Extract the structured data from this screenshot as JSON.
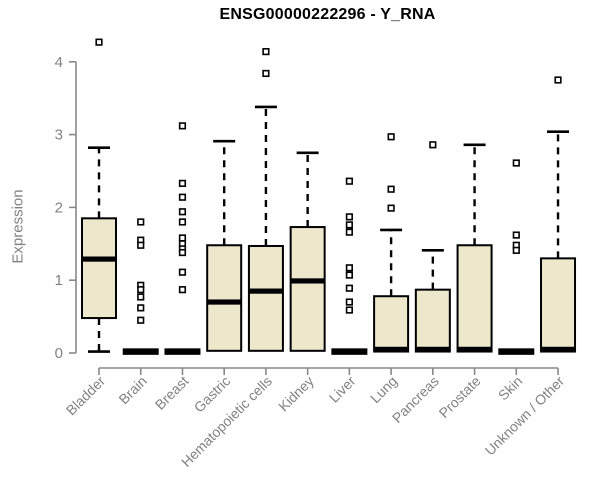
{
  "title": "ENSG00000222296 - Y_RNA",
  "chart_data": {
    "type": "boxplot",
    "title": "ENSG00000222296 - Y_RNA",
    "xlabel": "",
    "ylabel": "Expression",
    "ylim": [
      0,
      4.3
    ],
    "yticks": [
      0,
      1,
      2,
      3,
      4
    ],
    "grid": false,
    "legend": "none",
    "colors": {
      "box_fill": "#EDE7CC",
      "box_stroke": "#000000",
      "median": "#000000",
      "whisker": "#000000",
      "outlier_stroke": "#000000",
      "outlier_fill": "#ffffff",
      "axis": "#888888",
      "tick_label": "#828282",
      "title": "#000000",
      "background": "#ffffff"
    },
    "categories": [
      "Bladder",
      "Brain",
      "Breast",
      "Gastric",
      "Hematopoietic cells",
      "Kidney",
      "Liver",
      "Lung",
      "Pancreas",
      "Prostate",
      "Skin",
      "Unknown / Other"
    ],
    "boxes": [
      {
        "label": "Bladder",
        "flat": false,
        "whisker_low": 0.02,
        "q1": 0.48,
        "median": 1.29,
        "q3": 1.85,
        "whisker_high": 2.82,
        "outliers": [
          4.27
        ]
      },
      {
        "label": "Brain",
        "flat": true,
        "whisker_low": 0,
        "q1": 0,
        "median": 0.02,
        "q3": 0.03,
        "whisker_high": 0.03,
        "outliers": [
          1.8,
          1.55,
          1.48,
          0.93,
          0.87,
          0.77,
          0.62,
          0.45
        ]
      },
      {
        "label": "Breast",
        "flat": true,
        "whisker_low": 0,
        "q1": 0,
        "median": 0.02,
        "q3": 0.03,
        "whisker_high": 0.03,
        "outliers": [
          3.12,
          2.33,
          2.14,
          1.94,
          1.8,
          1.58,
          1.5,
          1.43,
          1.38,
          1.11,
          0.87
        ]
      },
      {
        "label": "Gastric",
        "flat": false,
        "whisker_low": 0.02,
        "q1": 0.03,
        "median": 0.7,
        "q3": 1.48,
        "whisker_high": 2.91,
        "outliers": []
      },
      {
        "label": "Hematopoietic cells",
        "flat": false,
        "whisker_low": 0.02,
        "q1": 0.03,
        "median": 0.85,
        "q3": 1.47,
        "whisker_high": 3.38,
        "outliers": [
          4.14,
          3.84
        ]
      },
      {
        "label": "Kidney",
        "flat": false,
        "whisker_low": 0.02,
        "q1": 0.03,
        "median": 0.99,
        "q3": 1.73,
        "whisker_high": 2.75,
        "outliers": []
      },
      {
        "label": "Liver",
        "flat": true,
        "whisker_low": 0,
        "q1": 0,
        "median": 0.02,
        "q3": 0.03,
        "whisker_high": 0.03,
        "outliers": [
          2.36,
          1.87,
          1.76,
          1.66,
          1.17,
          1.07,
          0.89,
          0.7,
          0.59
        ]
      },
      {
        "label": "Lung",
        "flat": false,
        "whisker_low": 0.02,
        "q1": 0.02,
        "median": 0.05,
        "q3": 0.78,
        "whisker_high": 1.69,
        "outliers": [
          2.97,
          2.25,
          1.99
        ]
      },
      {
        "label": "Pancreas",
        "flat": false,
        "whisker_low": 0.02,
        "q1": 0.02,
        "median": 0.05,
        "q3": 0.87,
        "whisker_high": 1.41,
        "outliers": [
          2.86
        ]
      },
      {
        "label": "Prostate",
        "flat": false,
        "whisker_low": 0.02,
        "q1": 0.02,
        "median": 0.05,
        "q3": 1.48,
        "whisker_high": 2.86,
        "outliers": []
      },
      {
        "label": "Skin",
        "flat": true,
        "whisker_low": 0,
        "q1": 0,
        "median": 0.02,
        "q3": 0.03,
        "whisker_high": 0.03,
        "outliers": [
          2.61,
          1.62,
          1.48,
          1.41
        ]
      },
      {
        "label": "Unknown / Other",
        "flat": false,
        "whisker_low": 0.02,
        "q1": 0.02,
        "median": 0.05,
        "q3": 1.3,
        "whisker_high": 3.04,
        "outliers": [
          3.75
        ]
      }
    ]
  }
}
